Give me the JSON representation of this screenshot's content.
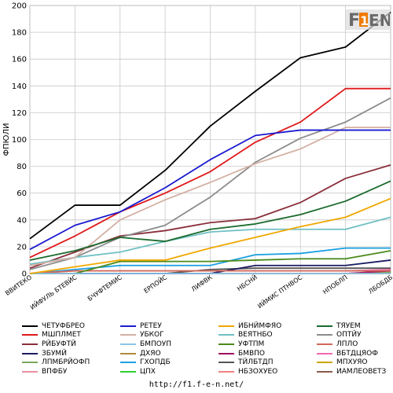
{
  "chart_data": {
    "type": "line",
    "title": "",
    "ylabel": "ФПЮЛИ",
    "xlabel": "",
    "ylim": [
      0,
      200
    ],
    "yticks": [
      0,
      20,
      40,
      60,
      80,
      100,
      120,
      140,
      160,
      180,
      200
    ],
    "grid": true,
    "legend_position": "bottom",
    "categories": [
      "ВВИТЕКО",
      "ИЙФУЛЬ БТЕВЙС",
      "БЧУФТЕМИС",
      "ЕРПОЙС",
      "ЛИФВК",
      "НБСНЙ",
      "ИЙМИС ПТНВОС",
      "НПОБЛП",
      "ЛБОБДБ"
    ],
    "series": [
      {
        "name": "ЧЕТУФБРЕО",
        "color": "#000000",
        "values": [
          [
            0,
            26
          ],
          [
            1,
            51
          ],
          [
            2,
            51
          ],
          [
            3,
            77
          ],
          [
            4,
            110
          ],
          [
            5,
            136
          ],
          [
            6,
            161
          ],
          [
            7,
            169
          ],
          [
            8,
            195
          ]
        ]
      },
      {
        "name": "РЕТЕУ",
        "color": "#1a1ad0",
        "values": [
          [
            0,
            18
          ],
          [
            1,
            36
          ],
          [
            2,
            46
          ],
          [
            3,
            64
          ],
          [
            4,
            85
          ],
          [
            5,
            103
          ],
          [
            6,
            107
          ],
          [
            7,
            107
          ],
          [
            8,
            107
          ]
        ]
      },
      {
        "name": "ИБНЙМФЯО",
        "color": "#f0a800",
        "values": [
          [
            0,
            0
          ],
          [
            1,
            5
          ],
          [
            2,
            10
          ],
          [
            3,
            10
          ],
          [
            4,
            19
          ],
          [
            5,
            27
          ],
          [
            6,
            35
          ],
          [
            7,
            42
          ],
          [
            8,
            56
          ]
        ]
      },
      {
        "name": "ТЯУЕМ",
        "color": "#1b6b2e",
        "values": [
          [
            0,
            10
          ],
          [
            1,
            17
          ],
          [
            2,
            27
          ],
          [
            3,
            24
          ],
          [
            4,
            33
          ],
          [
            5,
            37
          ],
          [
            6,
            44
          ],
          [
            7,
            54
          ],
          [
            8,
            69
          ]
        ]
      },
      {
        "name": "МШПЛМЕТ",
        "color": "#e01818",
        "values": [
          [
            0,
            12
          ],
          [
            1,
            28
          ],
          [
            2,
            46
          ],
          [
            3,
            60
          ],
          [
            4,
            76
          ],
          [
            5,
            98
          ],
          [
            6,
            113
          ],
          [
            7,
            138
          ],
          [
            8,
            138
          ]
        ]
      },
      {
        "name": "УБКОГ",
        "color": "#d4b0a4",
        "values": [
          [
            0,
            6
          ],
          [
            1,
            12
          ],
          [
            2,
            40
          ],
          [
            3,
            55
          ],
          [
            4,
            68
          ],
          [
            5,
            82
          ],
          [
            6,
            93
          ],
          [
            7,
            109
          ],
          [
            8,
            109
          ]
        ]
      },
      {
        "name": "ВЕЯТНБО",
        "color": "#6fc0c4",
        "values": [
          [
            0,
            7
          ],
          [
            1,
            12
          ],
          [
            2,
            16
          ],
          [
            3,
            24
          ],
          [
            4,
            31
          ],
          [
            5,
            33
          ],
          [
            6,
            33
          ],
          [
            7,
            33
          ],
          [
            8,
            42
          ]
        ]
      },
      {
        "name": "ОПТЙУ",
        "color": "#8c8c8c",
        "values": [
          [
            0,
            3
          ],
          [
            1,
            12
          ],
          [
            2,
            27
          ],
          [
            3,
            36
          ],
          [
            4,
            57
          ],
          [
            5,
            83
          ],
          [
            6,
            101
          ],
          [
            7,
            113
          ],
          [
            8,
            131
          ]
        ]
      },
      {
        "name": "РЙБУФТЙ",
        "color": "#8a2f3a",
        "values": [
          [
            0,
            4
          ],
          [
            1,
            16
          ],
          [
            2,
            28
          ],
          [
            3,
            32
          ],
          [
            4,
            38
          ],
          [
            5,
            41
          ],
          [
            6,
            53
          ],
          [
            7,
            71
          ],
          [
            8,
            81
          ]
        ]
      },
      {
        "name": "БМПОУП",
        "color": "#8fc3e8",
        "values": [
          [
            0,
            0
          ],
          [
            1,
            0
          ],
          [
            2,
            0
          ],
          [
            3,
            0
          ],
          [
            4,
            0
          ],
          [
            5,
            0
          ],
          [
            6,
            0
          ],
          [
            7,
            0
          ],
          [
            8,
            0
          ]
        ]
      },
      {
        "name": "УФТПМ",
        "color": "#4a8a1a",
        "values": [
          [
            0,
            0
          ],
          [
            1,
            0
          ],
          [
            2,
            9
          ],
          [
            3,
            9
          ],
          [
            4,
            9
          ],
          [
            5,
            10
          ],
          [
            6,
            11
          ],
          [
            7,
            11
          ],
          [
            8,
            17
          ]
        ]
      },
      {
        "name": "ЛПЛО",
        "color": "#d06a5a",
        "values": [
          [
            0,
            0
          ],
          [
            1,
            2
          ],
          [
            2,
            2
          ],
          [
            3,
            2
          ],
          [
            4,
            2
          ],
          [
            5,
            2
          ],
          [
            6,
            2
          ],
          [
            7,
            2
          ],
          [
            8,
            2
          ]
        ]
      },
      {
        "name": "ЗБУМЙ",
        "color": "#1a1a60",
        "values": [
          [
            0,
            0
          ],
          [
            1,
            0
          ],
          [
            2,
            0
          ],
          [
            3,
            0
          ],
          [
            4,
            0
          ],
          [
            5,
            6
          ],
          [
            6,
            6
          ],
          [
            7,
            6
          ],
          [
            8,
            10
          ]
        ]
      },
      {
        "name": "ДХЯО",
        "color": "#b08a3a",
        "values": [
          [
            0,
            0
          ],
          [
            1,
            0
          ],
          [
            2,
            0
          ],
          [
            3,
            0
          ],
          [
            4,
            0
          ],
          [
            5,
            0
          ],
          [
            6,
            0
          ],
          [
            7,
            0
          ],
          [
            8,
            0
          ]
        ]
      },
      {
        "name": "БМВПО",
        "color": "#a01060",
        "values": [
          [
            0,
            0
          ],
          [
            1,
            0
          ],
          [
            2,
            0
          ],
          [
            3,
            0
          ],
          [
            4,
            0
          ],
          [
            5,
            0
          ],
          [
            6,
            0
          ],
          [
            7,
            0
          ],
          [
            8,
            2
          ]
        ]
      },
      {
        "name": "ВБТДЦЯОФ",
        "color": "#f06ab0",
        "values": [
          [
            0,
            0
          ],
          [
            1,
            2
          ],
          [
            2,
            2
          ],
          [
            3,
            2
          ],
          [
            4,
            2
          ],
          [
            5,
            2
          ],
          [
            6,
            2
          ],
          [
            7,
            2
          ],
          [
            8,
            3
          ]
        ]
      },
      {
        "name": "ЛПМБРЙОФП",
        "color": "#7aa85c",
        "values": [
          [
            0,
            0
          ],
          [
            1,
            0
          ],
          [
            2,
            0
          ],
          [
            3,
            0
          ],
          [
            4,
            0
          ],
          [
            5,
            0
          ],
          [
            6,
            0
          ],
          [
            7,
            0
          ],
          [
            8,
            1
          ]
        ]
      },
      {
        "name": "ГХОПДБ",
        "color": "#1aa0e0",
        "values": [
          [
            0,
            0
          ],
          [
            1,
            3
          ],
          [
            2,
            6
          ],
          [
            3,
            6
          ],
          [
            4,
            6
          ],
          [
            5,
            14
          ],
          [
            6,
            15
          ],
          [
            7,
            19
          ],
          [
            8,
            19
          ]
        ]
      },
      {
        "name": "ТЙЛБТДП",
        "color": "#555555",
        "values": [
          [
            0,
            0
          ],
          [
            1,
            0
          ],
          [
            2,
            0
          ],
          [
            3,
            0
          ],
          [
            4,
            3
          ],
          [
            5,
            4
          ],
          [
            6,
            4
          ],
          [
            7,
            4
          ],
          [
            8,
            4
          ]
        ]
      },
      {
        "name": "МПХУЯО",
        "color": "#c8a800",
        "values": [
          [
            0,
            0
          ],
          [
            1,
            0
          ],
          [
            2,
            0
          ],
          [
            3,
            0
          ],
          [
            4,
            0
          ],
          [
            5,
            0
          ],
          [
            6,
            0
          ],
          [
            7,
            0
          ],
          [
            8,
            0
          ]
        ]
      },
      {
        "name": "ВПФБУ",
        "color": "#e890a0",
        "values": [
          [
            0,
            0
          ],
          [
            1,
            0
          ],
          [
            2,
            0
          ],
          [
            3,
            0
          ],
          [
            4,
            0
          ],
          [
            5,
            0
          ],
          [
            6,
            0
          ],
          [
            7,
            0
          ],
          [
            8,
            0
          ]
        ]
      },
      {
        "name": "ЦПХ",
        "color": "#30d030",
        "values": [
          [
            0,
            0
          ],
          [
            1,
            0
          ],
          [
            2,
            0
          ],
          [
            3,
            0
          ],
          [
            4,
            0
          ],
          [
            5,
            0
          ],
          [
            6,
            0
          ],
          [
            7,
            0
          ],
          [
            8,
            0
          ]
        ]
      },
      {
        "name": "НБЗОХУЕО",
        "color": "#f08080",
        "values": [
          [
            0,
            0
          ],
          [
            1,
            0
          ],
          [
            2,
            0
          ],
          [
            3,
            0
          ],
          [
            4,
            0
          ],
          [
            5,
            0
          ],
          [
            6,
            0
          ],
          [
            7,
            0
          ],
          [
            8,
            0
          ]
        ]
      },
      {
        "name": "ИАМЛЕОВЕТЗ",
        "color": "#8a5a4a",
        "values": [
          [
            0,
            0
          ],
          [
            1,
            0
          ],
          [
            2,
            0
          ],
          [
            3,
            0
          ],
          [
            4,
            0
          ],
          [
            5,
            0
          ],
          [
            6,
            0
          ],
          [
            7,
            0
          ],
          [
            8,
            0
          ]
        ]
      }
    ]
  },
  "logo": {
    "text": "F1EN",
    "accent": "#f07a00"
  },
  "footer": {
    "url": "http://f1.f-e-n.net/"
  }
}
